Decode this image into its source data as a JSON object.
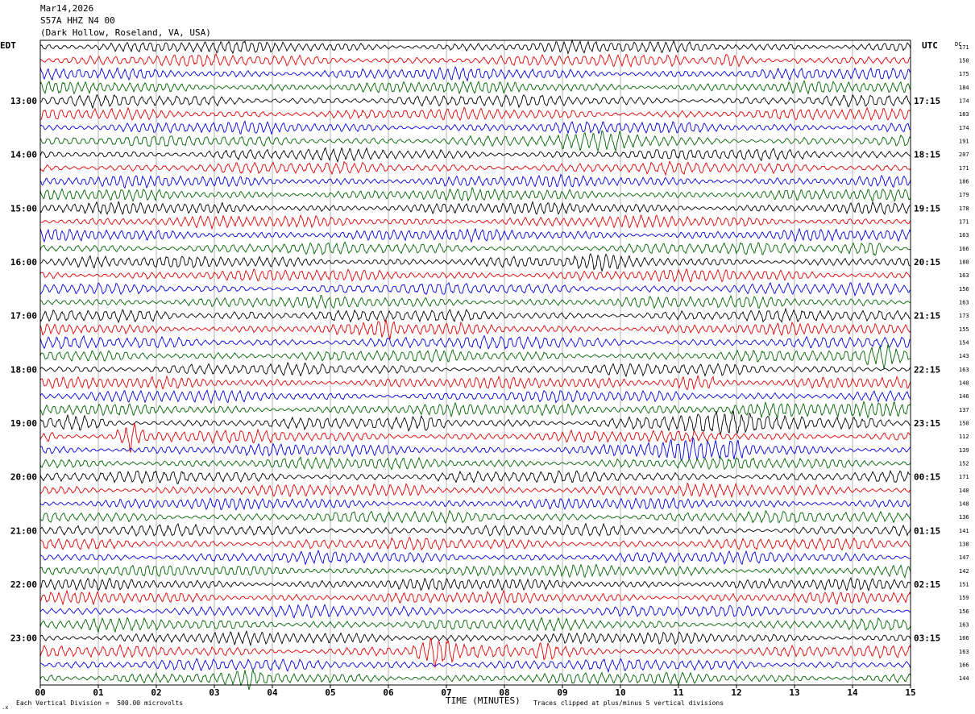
{
  "header": {
    "date": "Mar14,2026",
    "station": "S57A HHZ N4 00",
    "location": "(Dark Hollow, Roseland, VA, USA)"
  },
  "labels": {
    "left_tz": "EDT",
    "right_tz": "UTC",
    "dc": "DC",
    "footer_left": "Each Vertical Division =  500.00 microvolts",
    "footer_center": "TIME (MINUTES)",
    "footer_right": "Traces clipped at plus/minus 5 vertical divisions"
  },
  "colors": {
    "trace_cycle": [
      "#000000",
      "#e00000",
      "#0000e0",
      "#006400"
    ],
    "grid": "#808080",
    "frame": "#000000"
  },
  "chart_data": {
    "type": "line",
    "title": "S57A HHZ N4 00",
    "xlabel": "TIME (MINUTES)",
    "ylabel": "",
    "xlim": [
      0,
      15
    ],
    "x_ticks": [
      "00",
      "01",
      "02",
      "03",
      "04",
      "05",
      "06",
      "07",
      "08",
      "09",
      "10",
      "11",
      "12",
      "13",
      "14",
      "15"
    ],
    "left_hour_labels": [
      "13:00",
      "14:00",
      "15:00",
      "16:00",
      "17:00",
      "18:00",
      "19:00",
      "20:00",
      "21:00",
      "22:00",
      "23:00"
    ],
    "right_hour_labels": [
      "17:15",
      "18:15",
      "19:15",
      "20:15",
      "21:15",
      "22:15",
      "23:15",
      "00:15",
      "01:15",
      "02:15",
      "03:15"
    ],
    "trace_count": 48,
    "dc_offsets": [
      171,
      150,
      175,
      184,
      174,
      183,
      174,
      191,
      207,
      171,
      186,
      179,
      178,
      171,
      163,
      166,
      180,
      163,
      156,
      163,
      173,
      155,
      154,
      143,
      163,
      140,
      146,
      137,
      150,
      112,
      139,
      152,
      171,
      140,
      148,
      136,
      141,
      138,
      147,
      142,
      151,
      159,
      156,
      163,
      166,
      163,
      166,
      144
    ],
    "events": [
      {
        "trace": 1,
        "start_min": 10.8,
        "end_min": 11.1,
        "amp": 2.0
      },
      {
        "trace": 1,
        "start_min": 11.6,
        "end_min": 12.2,
        "amp": 2.0
      },
      {
        "trace": 1,
        "start_min": 12.9,
        "end_min": 13.2,
        "amp": 2.2
      },
      {
        "trace": 7,
        "start_min": 9.0,
        "end_min": 10.9,
        "amp": 1.9
      },
      {
        "trace": 9,
        "start_min": 8.05,
        "end_min": 8.25,
        "amp": 2.2
      },
      {
        "trace": 15,
        "start_min": 13.8,
        "end_min": 14.1,
        "amp": 1.7
      },
      {
        "trace": 15,
        "start_min": 14.1,
        "end_min": 14.6,
        "amp": 2.6
      },
      {
        "trace": 16,
        "start_min": 0.6,
        "end_min": 1.3,
        "amp": 1.6
      },
      {
        "trace": 16,
        "start_min": 9.2,
        "end_min": 10.0,
        "amp": 1.6
      },
      {
        "trace": 17,
        "start_min": 11.7,
        "end_min": 11.95,
        "amp": 1.7
      },
      {
        "trace": 20,
        "start_min": 0.3,
        "end_min": 3.8,
        "amp": 1.7
      },
      {
        "trace": 21,
        "start_min": 5.7,
        "end_min": 6.2,
        "amp": 2.2
      },
      {
        "trace": 22,
        "start_min": 8.0,
        "end_min": 9.4,
        "amp": 1.5
      },
      {
        "trace": 23,
        "start_min": 14.2,
        "end_min": 15.0,
        "amp": 2.7
      },
      {
        "trace": 25,
        "start_min": 10.6,
        "end_min": 11.6,
        "amp": 3.5
      },
      {
        "trace": 27,
        "start_min": 9.0,
        "end_min": 15.0,
        "amp": 1.7
      },
      {
        "trace": 28,
        "start_min": 0.0,
        "end_min": 1.2,
        "amp": 1.9
      },
      {
        "trace": 28,
        "start_min": 6.3,
        "end_min": 7.0,
        "amp": 1.6
      },
      {
        "trace": 28,
        "start_min": 9.5,
        "end_min": 13.2,
        "amp": 2.2
      },
      {
        "trace": 28,
        "start_min": 13.8,
        "end_min": 15.0,
        "amp": 1.9
      },
      {
        "trace": 29,
        "start_min": 0.0,
        "end_min": 0.3,
        "amp": 2.2
      },
      {
        "trace": 29,
        "start_min": 1.3,
        "end_min": 1.8,
        "amp": 3.7
      },
      {
        "trace": 29,
        "start_min": 2.2,
        "end_min": 3.3,
        "amp": 1.3
      },
      {
        "trace": 30,
        "start_min": 9.7,
        "end_min": 12.4,
        "amp": 1.9
      },
      {
        "trace": 30,
        "start_min": 11.8,
        "end_min": 12.1,
        "amp": 3.0
      },
      {
        "trace": 32,
        "start_min": 2.2,
        "end_min": 2.6,
        "amp": 1.4
      },
      {
        "trace": 33,
        "start_min": 6.3,
        "end_min": 6.6,
        "amp": 1.6
      },
      {
        "trace": 33,
        "start_min": 11.1,
        "end_min": 11.3,
        "amp": 1.5
      },
      {
        "trace": 43,
        "start_min": 0.8,
        "end_min": 1.0,
        "amp": 1.6
      },
      {
        "trace": 43,
        "start_min": 3.8,
        "end_min": 4.1,
        "amp": 1.7
      },
      {
        "trace": 43,
        "start_min": 4.6,
        "end_min": 4.8,
        "amp": 1.7
      },
      {
        "trace": 45,
        "start_min": 2.3,
        "end_min": 3.6,
        "amp": 1.6
      },
      {
        "trace": 45,
        "start_min": 6.4,
        "end_min": 7.2,
        "amp": 3.2
      },
      {
        "trace": 45,
        "start_min": 7.9,
        "end_min": 8.1,
        "amp": 1.8
      },
      {
        "trace": 45,
        "start_min": 8.5,
        "end_min": 8.9,
        "amp": 2.6
      },
      {
        "trace": 46,
        "start_min": 7.3,
        "end_min": 7.6,
        "amp": 1.4
      },
      {
        "trace": 47,
        "start_min": 0.1,
        "end_min": 0.4,
        "amp": 1.8
      },
      {
        "trace": 47,
        "start_min": 3.4,
        "end_min": 3.8,
        "amp": 1.8
      }
    ]
  }
}
